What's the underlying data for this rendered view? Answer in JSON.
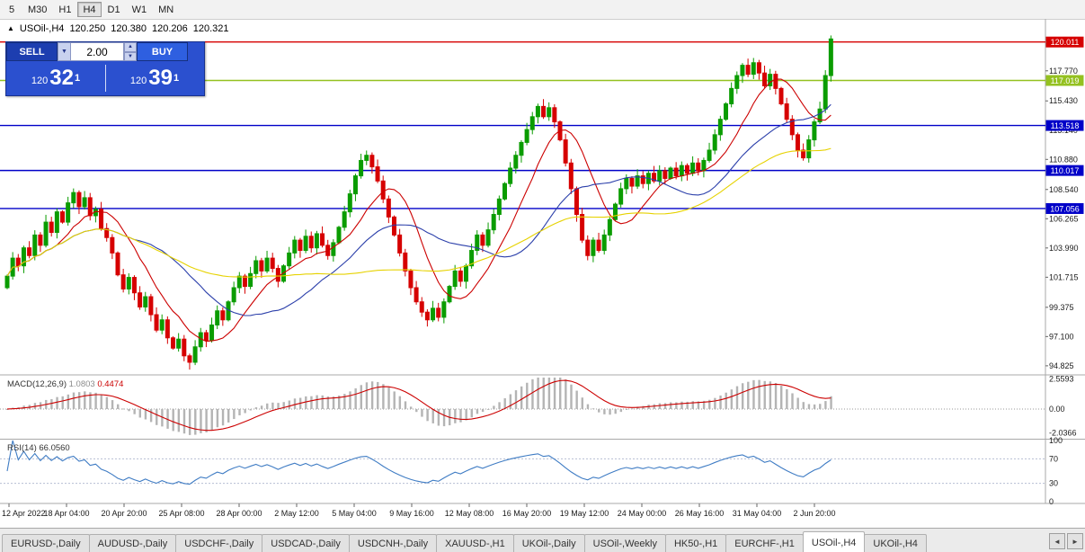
{
  "icons": {
    "symbol_marker": "▲",
    "dropdown": "▼",
    "spin_up": "▲",
    "spin_down": "▼",
    "tab_prev": "◄",
    "tab_next": "►"
  },
  "toolbar": {
    "timeframes": [
      "5",
      "M30",
      "H1",
      "H4",
      "D1",
      "W1",
      "MN"
    ],
    "active": "H4"
  },
  "chart_header": {
    "symbol": "USOil-,H4",
    "open": "120.250",
    "high": "120.380",
    "low": "120.206",
    "close": "120.321"
  },
  "trade_panel": {
    "sell_label": "SELL",
    "buy_label": "BUY",
    "volume": "2.00",
    "bid": {
      "whole": "120",
      "pips": "32",
      "fraction": "1"
    },
    "ask": {
      "whole": "120",
      "pips": "39",
      "fraction": "1"
    }
  },
  "time_axis": [
    "12 Apr 2022",
    "18 Apr 04:00",
    "20 Apr 20:00",
    "25 Apr 08:00",
    "28 Apr 00:00",
    "2 May 12:00",
    "5 May 04:00",
    "9 May 16:00",
    "12 May 08:00",
    "16 May 20:00",
    "19 May 12:00",
    "24 May 00:00",
    "26 May 16:00",
    "31 May 04:00",
    "2 Jun 20:00"
  ],
  "tabs": {
    "items": [
      "EURUSD-,Daily",
      "AUDUSD-,Daily",
      "USDCHF-,Daily",
      "USDCAD-,Daily",
      "USDCNH-,Daily",
      "XAUUSD-,H1",
      "UKOil-,Daily",
      "USOil-,Weekly",
      "HK50-,H1",
      "EURCHF-,H1",
      "USOil-,H4",
      "UKOil-,H4"
    ],
    "active": "USOil-,H4"
  },
  "chart_data": {
    "type": "candlestick",
    "symbol": "USOil-",
    "timeframe": "H4",
    "ohlc_display": {
      "open": "120.250",
      "high": "120.380",
      "low": "120.206",
      "close": "120.321"
    },
    "price_range": [
      94.3,
      121.6
    ],
    "y_ticks": [
      "117.770",
      "115.430",
      "113.140",
      "110.880",
      "108.540",
      "106.265",
      "103.990",
      "101.715",
      "99.375",
      "97.100",
      "94.825"
    ],
    "levels": [
      {
        "price": 120.011,
        "label": "120.011",
        "color": "#d60000"
      },
      {
        "price": 117.019,
        "label": "117.019",
        "color": "#94c120"
      },
      {
        "price": 113.518,
        "label": "113.518",
        "color": "#0000c8"
      },
      {
        "price": 110.017,
        "label": "110.017",
        "color": "#0000c8"
      },
      {
        "price": 107.056,
        "label": "107.056",
        "color": "#0000c8"
      }
    ],
    "first_open": 100.9,
    "closes": [
      101.8,
      103.2,
      102.6,
      104.0,
      103.4,
      105.0,
      104.2,
      106.0,
      105.2,
      106.8,
      106.0,
      107.5,
      108.3,
      107.2,
      107.9,
      106.5,
      107.0,
      105.5,
      104.8,
      103.6,
      101.9,
      100.8,
      101.7,
      100.5,
      99.4,
      100.2,
      98.8,
      97.6,
      98.4,
      97.0,
      96.2,
      96.9,
      95.6,
      95.1,
      96.3,
      97.4,
      96.8,
      98.0,
      99.1,
      98.4,
      99.8,
      100.9,
      101.8,
      101.0,
      102.0,
      103.0,
      102.2,
      103.2,
      102.4,
      101.4,
      102.6,
      103.6,
      104.6,
      103.8,
      104.9,
      104.0,
      105.1,
      104.2,
      103.4,
      104.4,
      105.6,
      106.8,
      108.2,
      109.6,
      110.8,
      111.2,
      110.3,
      109.2,
      107.8,
      106.4,
      105.0,
      103.6,
      102.2,
      100.9,
      99.8,
      99.0,
      98.4,
      99.3,
      98.6,
      99.8,
      101.0,
      102.2,
      101.4,
      102.6,
      103.8,
      105.0,
      104.2,
      105.4,
      106.6,
      107.8,
      109.0,
      110.2,
      111.2,
      112.2,
      113.2,
      114.2,
      115.0,
      114.2,
      114.9,
      113.8,
      112.4,
      110.6,
      108.6,
      106.6,
      104.6,
      103.4,
      104.6,
      103.8,
      105.0,
      106.2,
      107.4,
      108.6,
      109.4,
      108.8,
      109.6,
      109.0,
      109.8,
      109.2,
      110.0,
      109.4,
      110.2,
      109.6,
      110.4,
      109.8,
      110.6,
      110.0,
      110.8,
      111.6,
      112.8,
      114.0,
      115.2,
      116.4,
      117.4,
      118.2,
      117.5,
      118.4,
      117.6,
      116.6,
      117.5,
      116.4,
      115.2,
      114.0,
      112.8,
      111.6,
      111.0,
      112.4,
      113.8,
      114.8,
      117.4,
      120.25
    ],
    "moving_averages": [
      {
        "period": 10,
        "color": "#cc0000"
      },
      {
        "period": 24,
        "color": "#2b3faa"
      },
      {
        "period": 52,
        "color": "#e6d200"
      }
    ],
    "macd": {
      "label": "MACD(12,26,9)",
      "main_value": "1.0803",
      "signal_value": "0.4474",
      "ticks": [
        "2.5593",
        "0.00",
        "-2.0366"
      ],
      "hist_color": "#b4b4b4",
      "signal_color": "#cc0000"
    },
    "rsi": {
      "label": "RSI(14)",
      "value": "66.0560",
      "ticks": [
        "100",
        "70",
        "30",
        "0"
      ],
      "levels": [
        70,
        30
      ],
      "color": "#3f7cc4"
    },
    "colors": {
      "bull": "#0a9c00",
      "bear": "#d60000"
    }
  }
}
